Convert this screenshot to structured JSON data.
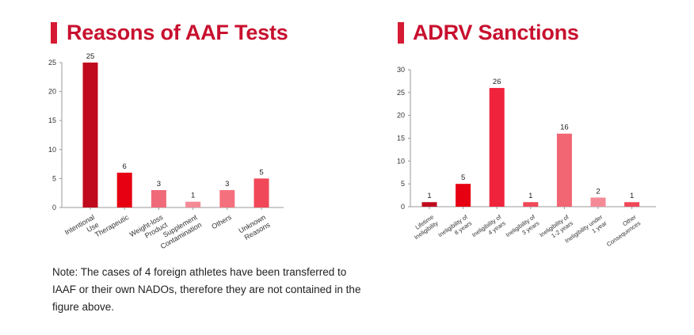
{
  "left_panel": {
    "title": "Reasons of AAF Tests"
  },
  "right_panel": {
    "title": "ADRV Sanctions"
  },
  "note": "Note: The cases of 4 foreign athletes have been transferred to IAAF or their own NADOs, therefore they are not contained in the figure above.",
  "chart_data": [
    {
      "type": "bar",
      "title": "Reasons of AAF Tests",
      "categories": [
        "Intentional Use",
        "Therapeutic",
        "Weight-loss Product",
        "Supplement Contamination",
        "Others",
        "Unknown Reasons"
      ],
      "values": [
        25,
        6,
        3,
        1,
        3,
        5
      ],
      "ylim": [
        0,
        25
      ],
      "yticks": [
        0,
        5,
        10,
        15,
        20,
        25
      ],
      "colors": [
        "#c00a1e",
        "#e60012",
        "#f06b7a",
        "#f48a96",
        "#f5707d",
        "#f04858"
      ],
      "grid": false
    },
    {
      "type": "bar",
      "title": "ADRV Sanctions",
      "categories": [
        "Lifetime Ineligibility",
        "Ineligibility of 8 years",
        "Ineligibility of 4 years",
        "Ineligibility of 3 years",
        "Ineligibility of 1-2 years",
        "Ineligibility under 1 year",
        "Other Consequences"
      ],
      "values": [
        1,
        5,
        26,
        1,
        16,
        2,
        1
      ],
      "ylim": [
        0,
        30
      ],
      "yticks": [
        0,
        5,
        10,
        15,
        20,
        25,
        30
      ],
      "colors": [
        "#c00a1e",
        "#e60012",
        "#f0233c",
        "#f04858",
        "#f26572",
        "#f48a96",
        "#f04858"
      ],
      "grid": false
    }
  ]
}
